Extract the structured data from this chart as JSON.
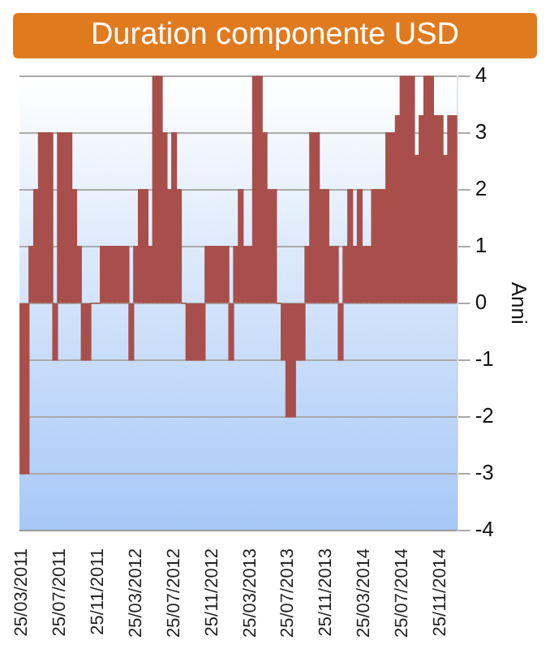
{
  "chart_data": {
    "type": "bar",
    "title": "Duration componente USD",
    "ylabel": "Anni",
    "categories": [
      "25/03/2011",
      null,
      null,
      null,
      null,
      null,
      null,
      null,
      "25/07/2011",
      null,
      null,
      null,
      null,
      null,
      null,
      null,
      "25/11/2011",
      null,
      null,
      null,
      null,
      null,
      null,
      null,
      "25/03/2012",
      null,
      null,
      null,
      null,
      null,
      null,
      null,
      "25/07/2012",
      null,
      null,
      null,
      null,
      null,
      null,
      null,
      "25/11/2012",
      null,
      null,
      null,
      null,
      null,
      null,
      null,
      "25/03/2013",
      null,
      null,
      null,
      null,
      null,
      null,
      null,
      "25/07/2013",
      null,
      null,
      null,
      null,
      null,
      null,
      null,
      "25/11/2013",
      null,
      null,
      null,
      null,
      null,
      null,
      null,
      "25/03/2014",
      null,
      null,
      null,
      null,
      null,
      null,
      null,
      "25/07/2014",
      null,
      null,
      null,
      null,
      null,
      null,
      null,
      "25/11/2014",
      null,
      null,
      null
    ],
    "values": [
      -3,
      -3,
      1,
      2,
      3,
      3,
      3,
      -1,
      3,
      3,
      3,
      2,
      1,
      -1,
      -1,
      0,
      0,
      1,
      1,
      1,
      1,
      1,
      1,
      -1,
      1,
      2,
      2,
      1,
      4,
      4,
      3,
      2,
      3,
      2,
      0,
      -1,
      -1,
      -1,
      -1,
      1,
      1,
      1,
      1,
      1,
      -1,
      1,
      2,
      1,
      1,
      4,
      4,
      3,
      2,
      2,
      0,
      -1,
      -2,
      -2,
      -1,
      -1,
      1,
      3,
      3,
      2,
      2,
      1,
      1,
      -1,
      1,
      2,
      1,
      2,
      1,
      1,
      2,
      2,
      2,
      3,
      3,
      3.3,
      4,
      4,
      4,
      2.6,
      3.3,
      4,
      4,
      3.3,
      3.3,
      2.6,
      3.3,
      3.3
    ],
    "color": "#a84f4c",
    "ylim": [
      -4,
      4
    ],
    "yticks": [
      -4,
      -3,
      -2,
      -1,
      0,
      1,
      2,
      3,
      4
    ],
    "grid": "y",
    "legend": false
  }
}
